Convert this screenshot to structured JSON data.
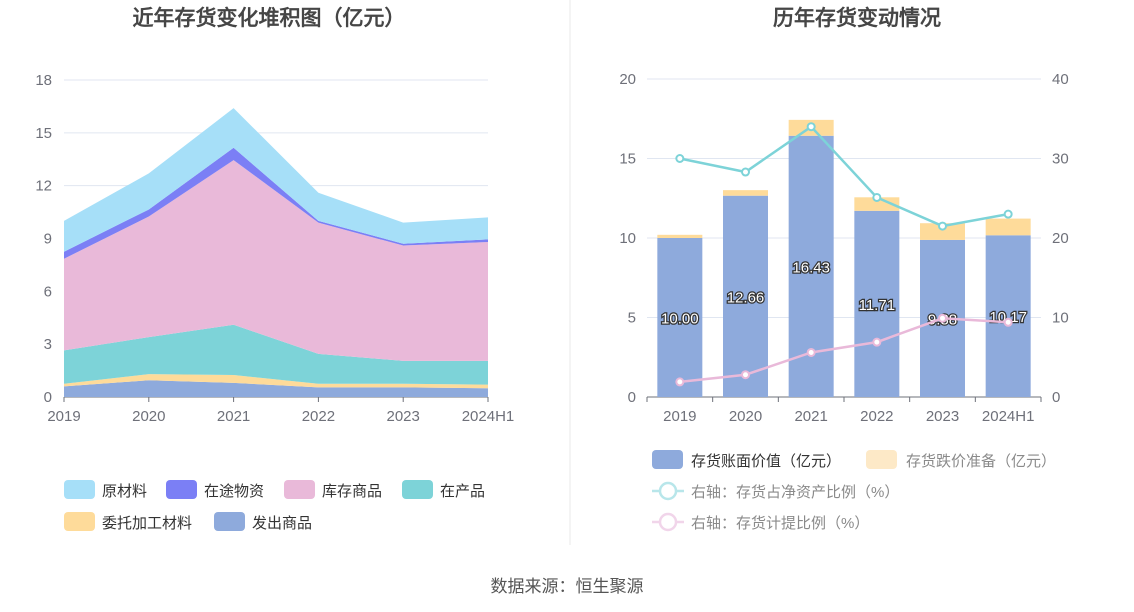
{
  "source": "数据来源：恒生聚源",
  "chart_data": [
    {
      "type": "area",
      "title": "近年存货变化堆积图（亿元）",
      "x": [
        "2019",
        "2020",
        "2021",
        "2022",
        "2023",
        "2024H1"
      ],
      "yticks": [
        "0",
        "3",
        "6",
        "9",
        "12",
        "15",
        "18"
      ],
      "ylim": [
        0,
        18
      ],
      "stacked": true,
      "series": [
        {
          "name": "发出商品",
          "color": "#8eaadc",
          "values": [
            0.6,
            0.95,
            0.8,
            0.55,
            0.55,
            0.5
          ]
        },
        {
          "name": "委托加工材料",
          "color": "#fedb9a",
          "values": [
            0.15,
            0.35,
            0.45,
            0.2,
            0.2,
            0.2
          ]
        },
        {
          "name": "在产品",
          "color": "#7dd3d8",
          "values": [
            1.9,
            2.1,
            2.85,
            1.7,
            1.3,
            1.35
          ]
        },
        {
          "name": "库存商品",
          "color": "#e9b9d9",
          "values": [
            5.2,
            6.85,
            9.35,
            7.45,
            6.55,
            6.75
          ]
        },
        {
          "name": "在途物资",
          "color": "#7b7ff5",
          "values": [
            0.4,
            0.4,
            0.7,
            0.1,
            0.1,
            0.15
          ]
        },
        {
          "name": "原材料",
          "color": "#a6dff8",
          "values": [
            1.75,
            2.05,
            2.25,
            1.6,
            1.2,
            1.25
          ]
        }
      ],
      "legend_order": [
        "原材料",
        "在途物资",
        "库存商品",
        "在产品",
        "委托加工材料",
        "发出商品"
      ],
      "grid": true,
      "legend": "bottom"
    },
    {
      "type": "bar",
      "title": "历年存货变动情况",
      "categories": [
        "2019",
        "2020",
        "2021",
        "2022",
        "2023",
        "2024H1"
      ],
      "ylim": [
        0,
        20
      ],
      "yticks": [
        "0",
        "5",
        "10",
        "15",
        "20"
      ],
      "y2lim": [
        0,
        40
      ],
      "y2ticks": [
        "0",
        "10",
        "20",
        "30",
        "40"
      ],
      "stacked": true,
      "series": [
        {
          "name": "存货账面价值（亿元）",
          "color": "#8eaadc",
          "values": [
            10.0,
            12.66,
            16.43,
            11.71,
            9.88,
            10.17
          ],
          "labels": [
            "10.00",
            "12.66",
            "16.43",
            "11.71",
            "9.88",
            "10.17"
          ]
        },
        {
          "name": "存货跌价准备（亿元）",
          "color": "#fedb9a",
          "values": [
            0.2,
            0.35,
            1.0,
            0.85,
            1.05,
            1.05
          ]
        },
        {
          "name": "右轴：存货占净资产比例（%）",
          "type": "line",
          "axis": "right",
          "color": "#7dd3d8",
          "values": [
            30.0,
            28.3,
            34.0,
            25.1,
            21.5,
            23.0
          ]
        },
        {
          "name": "右轴：存货计提比例（%）",
          "type": "line",
          "axis": "right",
          "color": "#e9b9d9",
          "values": [
            1.9,
            2.8,
            5.6,
            6.9,
            9.9,
            9.4
          ]
        }
      ],
      "grid": true,
      "legend": "bottom"
    }
  ]
}
